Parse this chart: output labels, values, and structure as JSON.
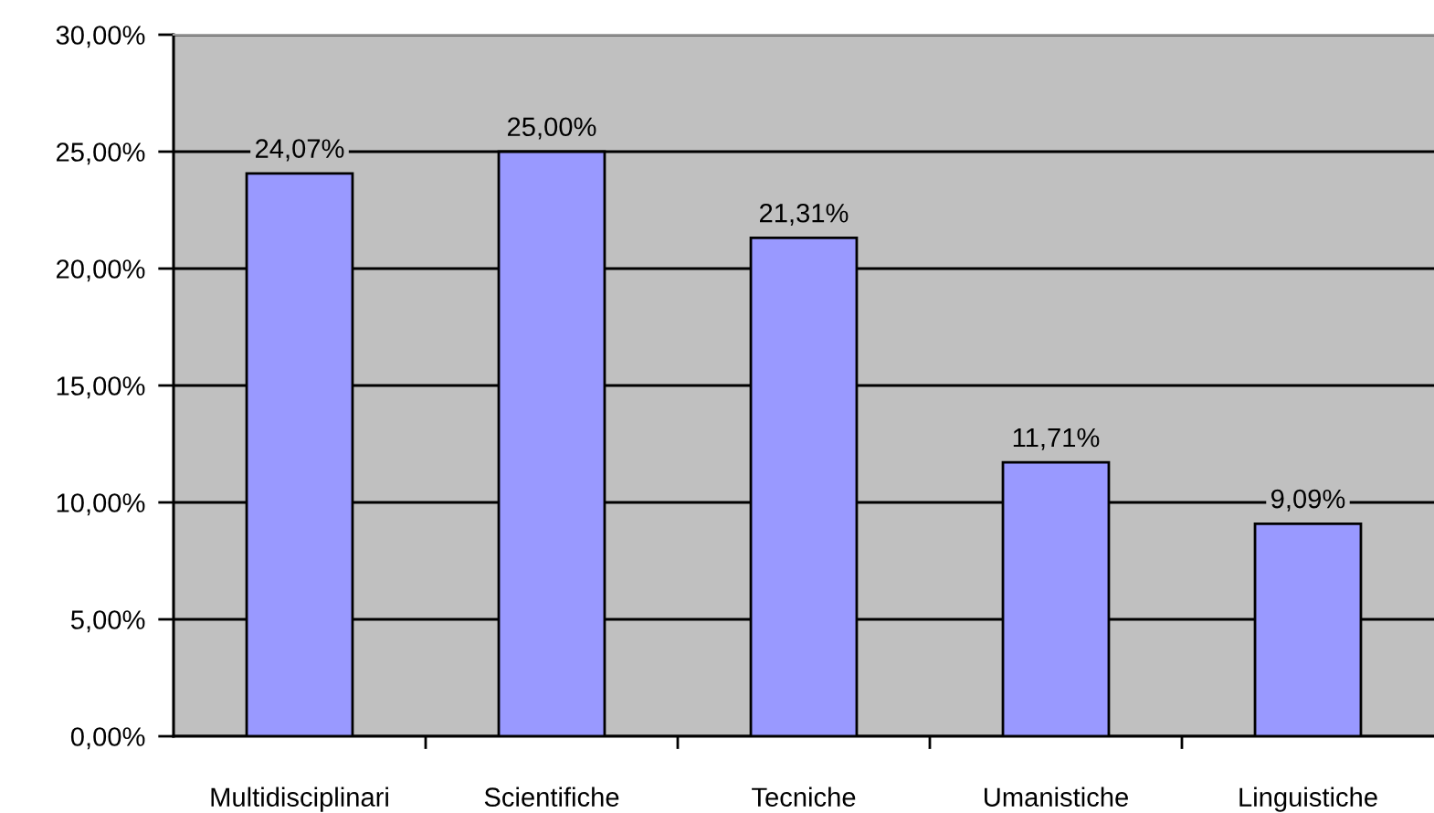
{
  "chart_data": {
    "type": "bar",
    "categories": [
      "Multidisciplinari",
      "Scientifiche",
      "Tecniche",
      "Umanistiche",
      "Linguistiche"
    ],
    "values": [
      24.07,
      25.0,
      21.31,
      11.71,
      9.09
    ],
    "color": "#9999ff",
    "value_labels": [
      "24,07%",
      "25,00%",
      "21,31%",
      "11,71%",
      "9,09%"
    ],
    "ylim": [
      0,
      30
    ],
    "yticks": [
      {
        "value": 0,
        "label": "0,00%"
      },
      {
        "value": 5,
        "label": "5,00%"
      },
      {
        "value": 10,
        "label": "10,00%"
      },
      {
        "value": 15,
        "label": "15,00%"
      },
      {
        "value": 20,
        "label": "20,00%"
      },
      {
        "value": 25,
        "label": "25,00%"
      },
      {
        "value": 30,
        "label": "30,00%"
      }
    ],
    "grid": "y"
  }
}
